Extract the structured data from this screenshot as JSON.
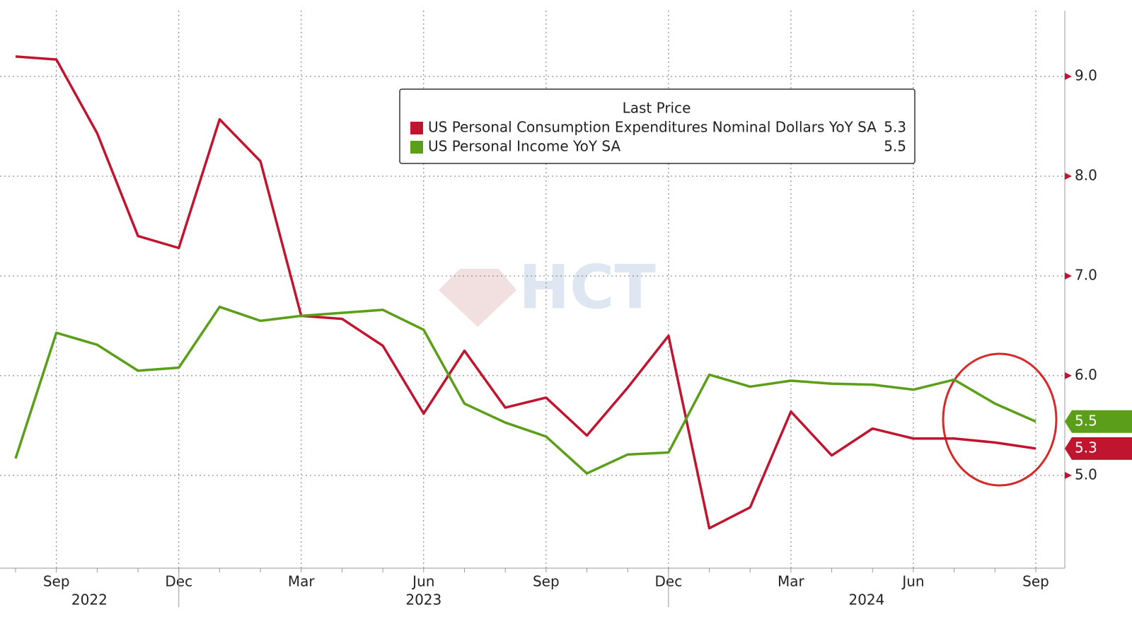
{
  "chart_data": {
    "type": "line",
    "legend_title": "Last Price",
    "watermark": "HCT",
    "x": [
      "2022-08",
      "2022-09",
      "2022-10",
      "2022-11",
      "2022-12",
      "2023-01",
      "2023-02",
      "2023-03",
      "2023-04",
      "2023-05",
      "2023-06",
      "2023-07",
      "2023-08",
      "2023-09",
      "2023-10",
      "2023-11",
      "2023-12",
      "2024-01",
      "2024-02",
      "2024-03",
      "2024-04",
      "2024-05",
      "2024-06",
      "2024-07",
      "2024-08",
      "2024-09"
    ],
    "series": [
      {
        "name": "US Personal Consumption Expenditures Nominal Dollars YoY SA",
        "color": "#c0142f",
        "last_label": "5.3",
        "values": [
          9.2,
          9.17,
          8.43,
          7.4,
          7.28,
          8.57,
          8.15,
          6.6,
          6.57,
          6.3,
          5.62,
          6.25,
          5.68,
          5.78,
          5.4,
          5.88,
          6.4,
          4.47,
          4.68,
          5.64,
          5.2,
          5.47,
          5.37,
          5.37,
          5.33,
          5.27
        ]
      },
      {
        "name": "US Personal Income YoY SA",
        "color": "#5a9e1a",
        "last_label": "5.5",
        "values": [
          5.17,
          6.43,
          6.31,
          6.05,
          6.08,
          6.69,
          6.55,
          6.6,
          6.63,
          6.66,
          6.46,
          5.72,
          5.53,
          5.39,
          5.02,
          5.21,
          5.23,
          6.01,
          5.89,
          5.95,
          5.92,
          5.91,
          5.86,
          5.96,
          5.72,
          5.54
        ]
      }
    ],
    "xlim": [
      "2022-08",
      "2024-09"
    ],
    "xticks": [
      {
        "value": "2022-09",
        "label": "Sep"
      },
      {
        "value": "2022-12",
        "label": "Dec"
      },
      {
        "value": "2023-03",
        "label": "Mar"
      },
      {
        "value": "2023-06",
        "label": "Jun"
      },
      {
        "value": "2023-09",
        "label": "Sep"
      },
      {
        "value": "2023-12",
        "label": "Dec"
      },
      {
        "value": "2024-03",
        "label": "Mar"
      },
      {
        "value": "2024-06",
        "label": "Jun"
      },
      {
        "value": "2024-09",
        "label": "Sep"
      }
    ],
    "years": [
      "2022",
      "2023",
      "2024"
    ],
    "ylim": [
      4.07,
      9.66
    ],
    "yticks": [
      {
        "value": 5,
        "label": "5.0"
      },
      {
        "value": 6,
        "label": "6.0"
      },
      {
        "value": 7,
        "label": "7.0"
      },
      {
        "value": 8,
        "label": "8.0"
      },
      {
        "value": 9,
        "label": "9.0"
      }
    ],
    "grid": true
  }
}
